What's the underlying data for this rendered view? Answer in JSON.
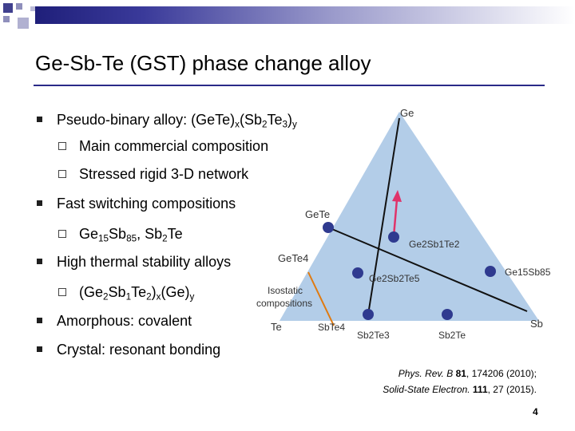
{
  "slide": {
    "title": "Ge-Sb-Te (GST) phase change alloy",
    "bullets": {
      "b1_text": "Pseudo-binary alloy: (GeTe)",
      "b1_sub1": "x",
      "b1_mid": "(Sb",
      "b1_sub2": "2",
      "b1_mid2": "Te",
      "b1_sub3": "3",
      "b1_mid3": ")",
      "b1_sub4": "y",
      "b1a": "Main commercial composition",
      "b1b": "Stressed rigid 3-D network",
      "b2": "Fast switching compositions",
      "b2a_1": "Ge",
      "b2a_s1": "15",
      "b2a_2": "Sb",
      "b2a_s2": "85",
      "b2a_3": ", Sb",
      "b2a_s3": "2",
      "b2a_4": "Te",
      "b3": "High thermal stability alloys",
      "b3a_1": "(Ge",
      "b3a_s1": "2",
      "b3a_2": "Sb",
      "b3a_s2": "1",
      "b3a_3": "Te",
      "b3a_s3": "2",
      "b3a_4": ")",
      "b3a_s4": "x",
      "b3a_5": "(Ge)",
      "b3a_s5": "y",
      "b4": "Amorphous: covalent",
      "b5": "Crystal: resonant bonding"
    },
    "diagram": {
      "vertex_ge": "Ge",
      "vertex_te": "Te",
      "vertex_sb": "Sb",
      "label_gete": "GeTe",
      "label_ge2sb1te2": "Ge2Sb1Te2",
      "label_ge2sb2te5": "Ge2Sb2Te5",
      "label_ge15sb85": "Ge15Sb85",
      "label_sb2te3": "Sb2Te3",
      "label_sb2te": "Sb2Te",
      "label_gete4": "GeTe4",
      "label_isostatic_1": "Isostatic",
      "label_isostatic_2": "compositions",
      "label_sbte4": "SbTe4",
      "colors": {
        "triangle_fill": "#b3cde8",
        "point": "#2f3a8f",
        "arrow": "#e0336a",
        "isostatic_line": "#e07a10"
      }
    },
    "reference": {
      "line1_journal": "Phys. Rev. B",
      "line1_vol": "81",
      "line1_rest": ", 174206 (2010);",
      "line2_journal": "Solid-State Electron.",
      "line2_vol": "111",
      "line2_rest": ", 27 (2015)."
    },
    "page_number": "4"
  }
}
